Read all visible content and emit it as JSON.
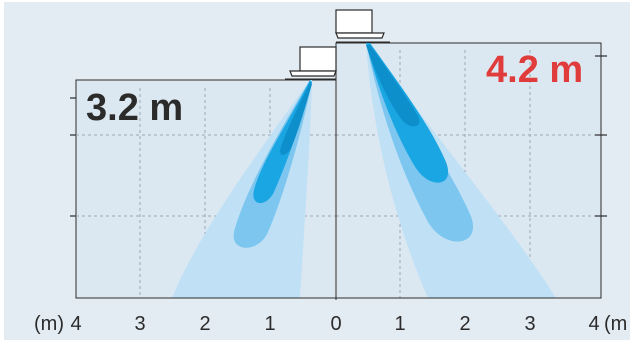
{
  "left_height_label": "3.2 m",
  "right_height_label": "4.2 m",
  "axis_unit_left": "(m)",
  "axis_unit_right": "(m",
  "x_ticks": [
    "4",
    "3",
    "2",
    "1",
    "0",
    "1",
    "2",
    "3",
    "4"
  ],
  "colors": {
    "background": "#ffffff",
    "frame": "#e4ecf3",
    "panel": "#dce8f1",
    "grid": "#9aa8b4",
    "beam_outer": "#bfe0f5",
    "beam_mid": "#7cc6ef",
    "beam_inner": "#1aa6e2",
    "beam_core": "#0d8fcc",
    "accent_red": "#e03c3c",
    "text": "#2b2b2b"
  },
  "fixtures": [
    {
      "name": "fixture-left",
      "icon": "ceiling-lamp-icon"
    },
    {
      "name": "fixture-right",
      "icon": "ceiling-lamp-icon"
    }
  ]
}
